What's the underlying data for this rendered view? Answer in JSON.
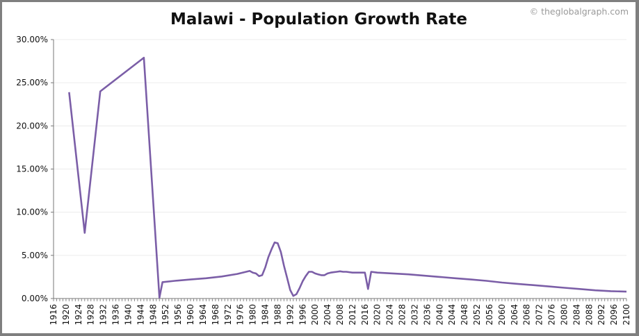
{
  "chart_data": {
    "type": "line",
    "title": "Malawi - Population Growth Rate",
    "credit": "© theglobalgraph.com",
    "xlabel": "",
    "ylabel": "",
    "xlim": [
      1916,
      2100
    ],
    "ylim": [
      0,
      30
    ],
    "y_ticks": [
      "0.00%",
      "5.00%",
      "10.00%",
      "15.00%",
      "20.00%",
      "25.00%",
      "30.00%"
    ],
    "x_tick_step": 4,
    "grid": true,
    "legend": "none",
    "line_color": "#7b5ea7",
    "series": [
      {
        "x": [
          1921,
          1926,
          1931,
          1945,
          1950,
          1951,
          1955,
          1960,
          1965,
          1970,
          1975,
          1979,
          1980,
          1981,
          1982,
          1983,
          1984,
          1985,
          1986,
          1987,
          1988,
          1989,
          1990,
          1991,
          1992,
          1993,
          1994,
          1995,
          1996,
          1997,
          1998,
          1999,
          2000,
          2001,
          2002,
          2003,
          2004,
          2005,
          2006,
          2007,
          2008,
          2009,
          2010,
          2012,
          2014,
          2016,
          2017,
          2018,
          2020,
          2025,
          2030,
          2035,
          2040,
          2045,
          2050,
          2055,
          2060,
          2065,
          2070,
          2075,
          2080,
          2085,
          2090,
          2095,
          2100
        ],
        "y": [
          23.9,
          7.6,
          24.0,
          27.9,
          0.1,
          1.9,
          2.05,
          2.2,
          2.35,
          2.55,
          2.85,
          3.2,
          3.0,
          2.9,
          2.6,
          2.7,
          3.6,
          4.8,
          5.7,
          6.5,
          6.4,
          5.4,
          3.8,
          2.4,
          1.0,
          0.3,
          0.5,
          1.2,
          2.0,
          2.6,
          3.1,
          3.1,
          2.9,
          2.8,
          2.7,
          2.7,
          2.9,
          3.0,
          3.05,
          3.1,
          3.15,
          3.1,
          3.1,
          3.0,
          3.0,
          3.0,
          1.1,
          3.1,
          3.0,
          2.9,
          2.8,
          2.65,
          2.5,
          2.35,
          2.2,
          2.05,
          1.85,
          1.7,
          1.55,
          1.4,
          1.25,
          1.1,
          0.95,
          0.85,
          0.8
        ]
      }
    ]
  }
}
